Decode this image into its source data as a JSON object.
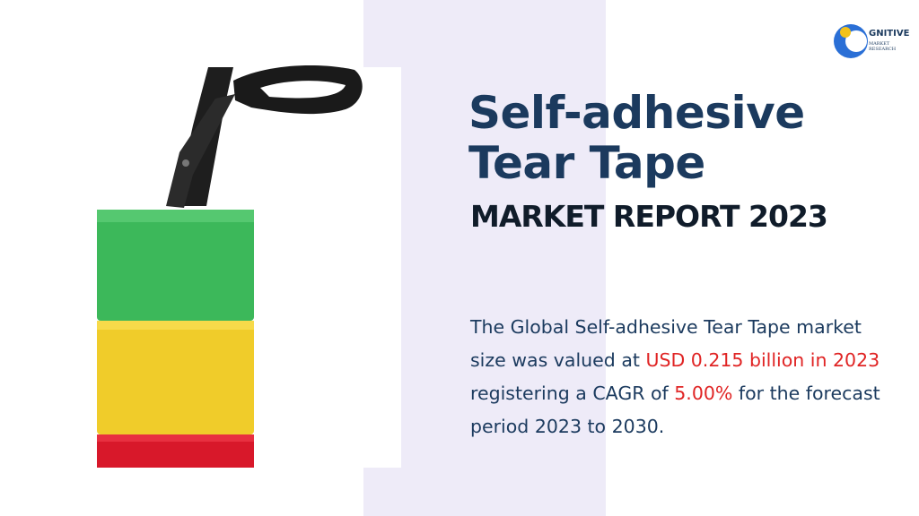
{
  "logo": {
    "word": "GNITIVE",
    "sub": "MARKET RESEARCH"
  },
  "title": {
    "line1": "Self-adhesive",
    "line2": "Tear Tape",
    "subtitle": "MARKET REPORT 2023"
  },
  "paragraph": {
    "part1": "The Global Self-adhesive Tear Tape market size was valued at ",
    "highlight1": "USD 0.215 billion in 2023",
    "part2": " registering a CAGR of ",
    "highlight2": "5.00%",
    "part3": " for the forecast period 2023 to 2030."
  }
}
